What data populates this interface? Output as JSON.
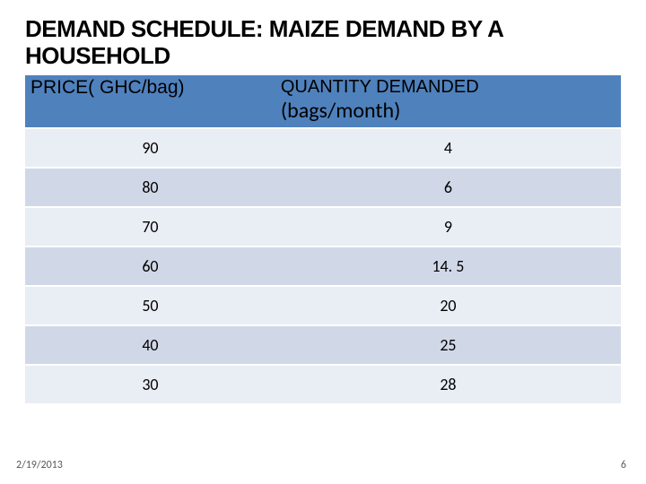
{
  "title": "DEMAND SCHEDULE: MAIZE DEMAND BY A HOUSEHOLD",
  "table": {
    "header": {
      "col1": "PRICE( GHC/bag)",
      "col2_line1": "QUANTITY DEMANDED",
      "col2_line2": "(bags/month)"
    },
    "rows": [
      {
        "price": "90",
        "qty": "4"
      },
      {
        "price": "80",
        "qty": "6"
      },
      {
        "price": "70",
        "qty": "9"
      },
      {
        "price": "60",
        "qty": "14. 5"
      },
      {
        "price": "50",
        "qty": "20"
      },
      {
        "price": "40",
        "qty": "25"
      },
      {
        "price": "30",
        "qty": "28"
      }
    ],
    "header_bg": "#4f81bd",
    "row_light_bg": "#e9edf4",
    "row_dark_bg": "#d0d8e8",
    "font_size_data": 18,
    "font_size_title": 26
  },
  "footer": {
    "date": "2/19/2013",
    "page": "6"
  }
}
